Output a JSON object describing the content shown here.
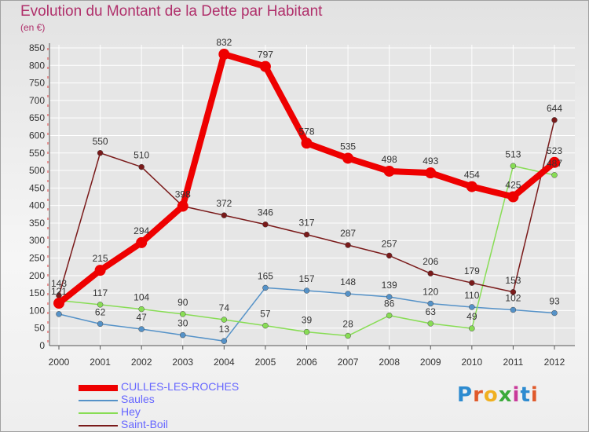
{
  "title": "Evolution du Montant de la Dette par Habitant",
  "subtitle": "(en €)",
  "logo": "Proxiti",
  "colors": {
    "title": "#b0306b",
    "legend_text": "#6666ff",
    "grid": "#ffffff"
  },
  "chart_data": {
    "type": "line",
    "title": "Evolution du Montant de la Dette par Habitant",
    "subtitle": "(en €)",
    "x": [
      "2000",
      "2001",
      "2002",
      "2003",
      "2004",
      "2005",
      "2006",
      "2007",
      "2008",
      "2009",
      "2010",
      "2011",
      "2012"
    ],
    "ylim": [
      0,
      850
    ],
    "yticks": [
      0,
      50,
      100,
      150,
      200,
      250,
      300,
      350,
      400,
      450,
      500,
      550,
      600,
      650,
      700,
      750,
      800,
      850
    ],
    "grid": true,
    "legend_position": "bottom-left",
    "series": [
      {
        "name": "CULLES-LES-ROCHES",
        "color": "#ee0000",
        "width": 8,
        "marker": 7,
        "values": [
          121,
          215,
          294,
          398,
          832,
          797,
          578,
          535,
          498,
          493,
          454,
          425,
          523
        ],
        "labels": [
          "121",
          "215",
          "294",
          "398",
          "832",
          "797",
          "578",
          "535",
          "498",
          "493",
          "454",
          "425",
          "523"
        ]
      },
      {
        "name": "Saules",
        "color": "#5592c8",
        "width": 1.5,
        "marker": 3.5,
        "values": [
          90,
          62,
          47,
          30,
          13,
          165,
          157,
          148,
          139,
          120,
          110,
          102,
          93
        ],
        "labels": [
          "",
          "62",
          "47",
          "30",
          "13",
          "165",
          "157",
          "148",
          "139",
          "120",
          "110",
          "102",
          "93"
        ]
      },
      {
        "name": "Hey",
        "color": "#88dd55",
        "width": 1.5,
        "marker": 3.5,
        "values": [
          129,
          117,
          104,
          90,
          74,
          57,
          39,
          28,
          86,
          63,
          49,
          513,
          487
        ],
        "labels": [
          "",
          "117",
          "104",
          "90",
          "74",
          "57",
          "39",
          "28",
          "86",
          "63",
          "49",
          "513",
          "487"
        ]
      },
      {
        "name": "Saint-Boil",
        "color": "#7a1a1a",
        "width": 1.5,
        "marker": 3.5,
        "values": [
          143,
          550,
          510,
          398,
          372,
          346,
          317,
          287,
          257,
          206,
          179,
          153,
          644
        ],
        "labels": [
          "143",
          "550",
          "510",
          "",
          "372",
          "346",
          "317",
          "287",
          "257",
          "206",
          "179",
          "153",
          "644"
        ]
      }
    ]
  }
}
